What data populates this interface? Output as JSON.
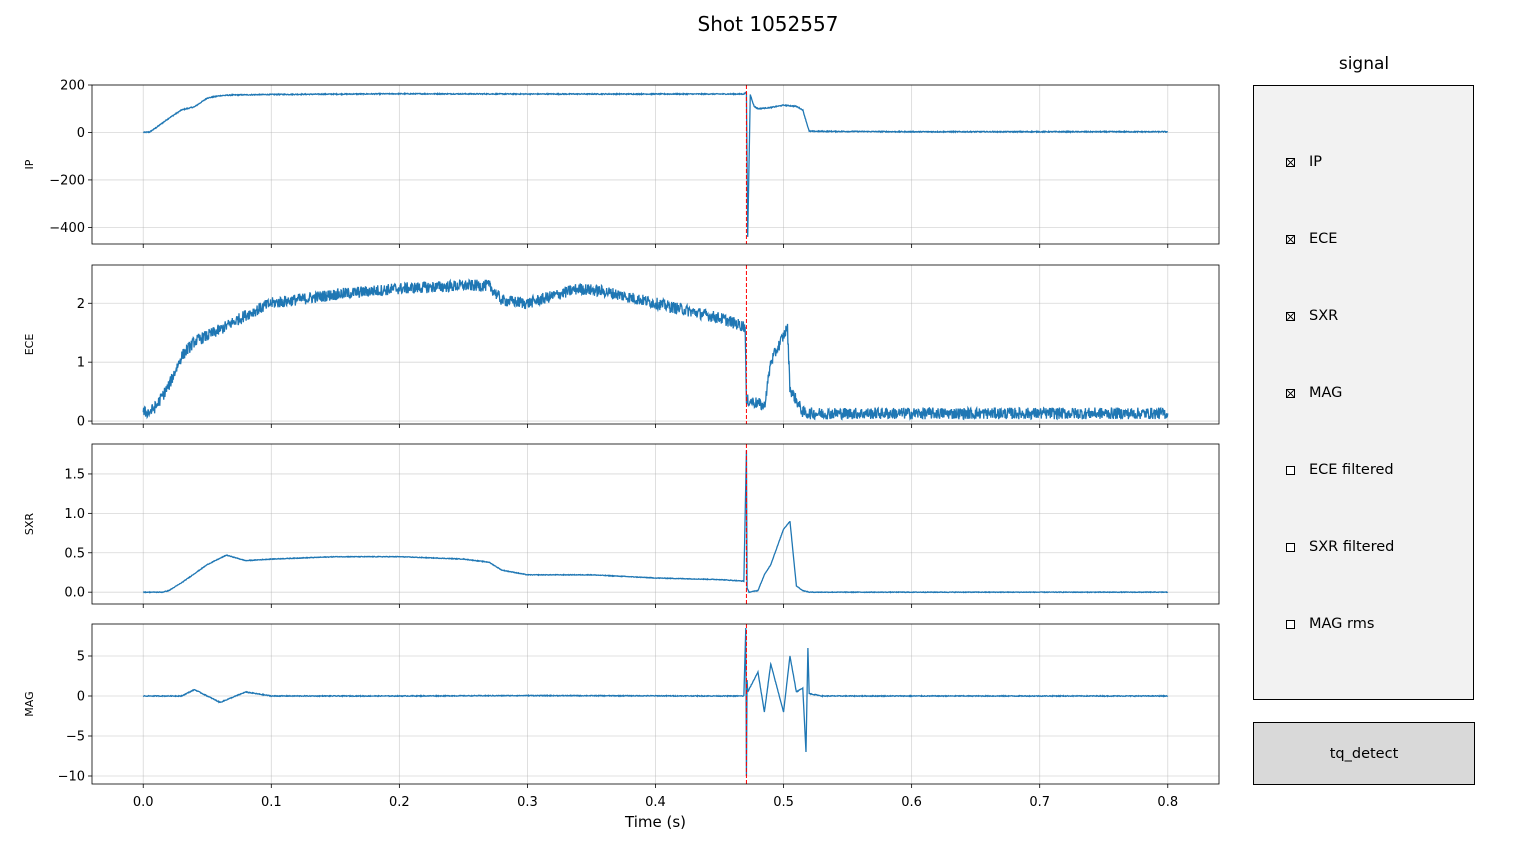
{
  "figure": {
    "title": "Shot 1052557",
    "xlabel": "Time (s)"
  },
  "signal_panel": {
    "title": "signal",
    "items": [
      {
        "label": "IP",
        "checked": true
      },
      {
        "label": "ECE",
        "checked": true
      },
      {
        "label": "SXR",
        "checked": true
      },
      {
        "label": "MAG",
        "checked": true
      },
      {
        "label": "ECE filtered",
        "checked": false
      },
      {
        "label": "SXR filtered",
        "checked": false
      },
      {
        "label": "MAG rms",
        "checked": false
      }
    ]
  },
  "button": {
    "label": "tq_detect"
  },
  "chart_data": {
    "type": "line",
    "xlim": [
      -0.04,
      0.84
    ],
    "xticks": [
      0.0,
      0.1,
      0.2,
      0.3,
      0.4,
      0.5,
      0.6,
      0.7,
      0.8
    ],
    "xticklabels": [
      "0.0",
      "0.1",
      "0.2",
      "0.3",
      "0.4",
      "0.5",
      "0.6",
      "0.7",
      "0.8"
    ],
    "grid": true,
    "line_color": "#1f77b4",
    "marker_color": "#ff0000",
    "marker_x": 0.471,
    "subplots": [
      {
        "ylabel": "IP",
        "ylim": [
          -470,
          200
        ],
        "yticks": [
          200,
          0,
          -200,
          -400
        ],
        "yticklabels": [
          "200",
          "0",
          "−200",
          "−400"
        ],
        "noise": 2,
        "x": [
          0.0,
          0.005,
          0.01,
          0.02,
          0.03,
          0.04,
          0.05,
          0.06,
          0.07,
          0.1,
          0.2,
          0.3,
          0.4,
          0.469,
          0.471,
          0.472,
          0.474,
          0.477,
          0.48,
          0.49,
          0.5,
          0.51,
          0.515,
          0.52,
          0.6,
          0.7,
          0.8
        ],
        "y": [
          0,
          2,
          20,
          60,
          95,
          108,
          145,
          155,
          158,
          160,
          163,
          162,
          162,
          162,
          170,
          -440,
          160,
          110,
          100,
          105,
          115,
          110,
          95,
          5,
          3,
          3,
          3
        ]
      },
      {
        "ylabel": "ECE",
        "ylim": [
          -0.05,
          2.65
        ],
        "yticks": [
          0,
          1,
          2
        ],
        "yticklabels": [
          "0",
          "1",
          "2"
        ],
        "noise": 0.1,
        "x": [
          0.0,
          0.005,
          0.01,
          0.02,
          0.03,
          0.04,
          0.06,
          0.08,
          0.1,
          0.15,
          0.2,
          0.25,
          0.27,
          0.28,
          0.3,
          0.34,
          0.36,
          0.4,
          0.45,
          0.47,
          0.471,
          0.472,
          0.48,
          0.485,
          0.49,
          0.5,
          0.503,
          0.505,
          0.51,
          0.515,
          0.52,
          0.6,
          0.7,
          0.8
        ],
        "y": [
          0.15,
          0.15,
          0.25,
          0.6,
          1.1,
          1.35,
          1.55,
          1.8,
          2.0,
          2.15,
          2.25,
          2.3,
          2.3,
          2.05,
          2.0,
          2.25,
          2.2,
          2.0,
          1.75,
          1.6,
          0.3,
          0.35,
          0.3,
          0.25,
          1.0,
          1.45,
          1.6,
          0.55,
          0.35,
          0.15,
          0.13,
          0.13,
          0.13,
          0.13
        ]
      },
      {
        "ylabel": "SXR",
        "ylim": [
          -0.15,
          1.88
        ],
        "yticks": [
          0.0,
          0.5,
          1.0,
          1.5
        ],
        "yticklabels": [
          "0.0",
          "0.5",
          "1.0",
          "1.5"
        ],
        "noise": 0.004,
        "x": [
          0.0,
          0.015,
          0.02,
          0.03,
          0.05,
          0.065,
          0.08,
          0.1,
          0.15,
          0.2,
          0.25,
          0.27,
          0.28,
          0.3,
          0.35,
          0.4,
          0.45,
          0.469,
          0.471,
          0.4715,
          0.473,
          0.48,
          0.485,
          0.49,
          0.5,
          0.505,
          0.51,
          0.515,
          0.52,
          0.6,
          0.8
        ],
        "y": [
          0.0,
          0.0,
          0.02,
          0.12,
          0.35,
          0.47,
          0.4,
          0.42,
          0.45,
          0.45,
          0.42,
          0.38,
          0.28,
          0.22,
          0.22,
          0.18,
          0.16,
          0.14,
          1.8,
          0.05,
          0.0,
          0.02,
          0.22,
          0.35,
          0.8,
          0.9,
          0.08,
          0.02,
          0.0,
          0.0,
          0.0
        ]
      },
      {
        "ylabel": "MAG",
        "ylim": [
          -11,
          9
        ],
        "yticks": [
          5,
          0,
          -5,
          -10
        ],
        "yticklabels": [
          "5",
          "0",
          "−5",
          "−10"
        ],
        "noise": 0.05,
        "x": [
          0.0,
          0.03,
          0.04,
          0.06,
          0.08,
          0.1,
          0.2,
          0.3,
          0.46,
          0.469,
          0.4705,
          0.471,
          0.4715,
          0.472,
          0.48,
          0.485,
          0.49,
          0.5,
          0.505,
          0.51,
          0.515,
          0.5175,
          0.519,
          0.52,
          0.53,
          0.8
        ],
        "y": [
          0.0,
          0.0,
          0.8,
          -0.8,
          0.5,
          0.0,
          0.0,
          0.05,
          0.0,
          0.0,
          8.5,
          -10.0,
          2.0,
          0.5,
          3.0,
          -2.0,
          4.0,
          -2.0,
          5.0,
          0.5,
          1.0,
          -7.0,
          6.0,
          0.3,
          0.0,
          0.0
        ]
      }
    ]
  }
}
